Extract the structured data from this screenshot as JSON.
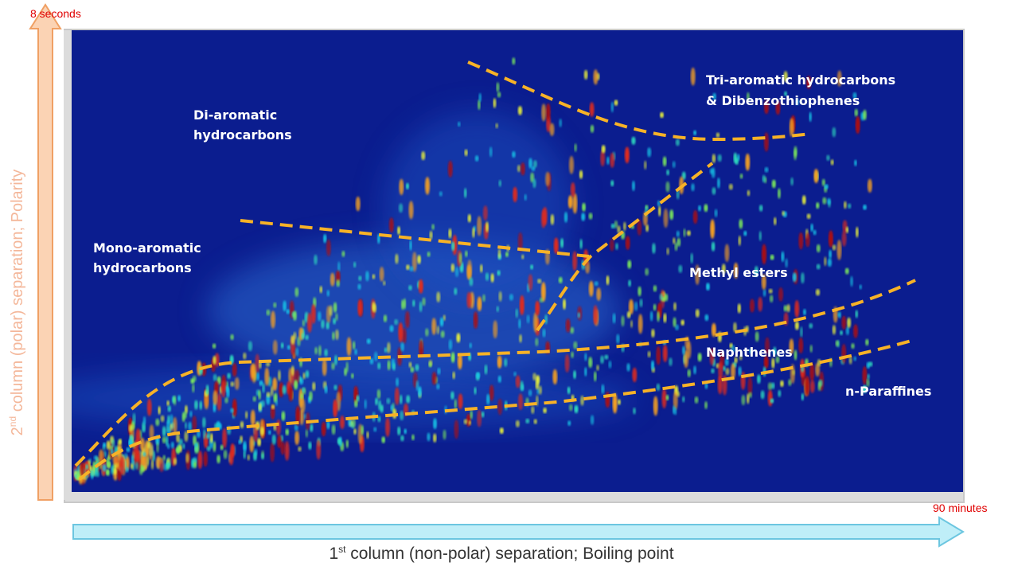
{
  "y_axis": {
    "top_label": "8 seconds",
    "title_number": "2",
    "title_superscript": "nd",
    "title_rest": " column (polar) separation; Polarity"
  },
  "x_axis": {
    "end_label": "90 minutes",
    "title_number": "1",
    "title_superscript": "st",
    "title_rest": " column (non-polar) separation; Boiling point"
  },
  "regions": [
    {
      "lines": [
        "Tri-aromatic hydrocarbons",
        "& Dibenzothiophenes"
      ]
    },
    {
      "lines": [
        "Di-aromatic",
        "hydrocarbons"
      ]
    },
    {
      "lines": [
        "Mono-aromatic",
        "hydrocarbons"
      ]
    },
    {
      "lines": [
        "Methyl esters"
      ]
    },
    {
      "lines": [
        "Naphthenes"
      ]
    },
    {
      "lines": [
        "n-Paraffines"
      ]
    }
  ]
}
